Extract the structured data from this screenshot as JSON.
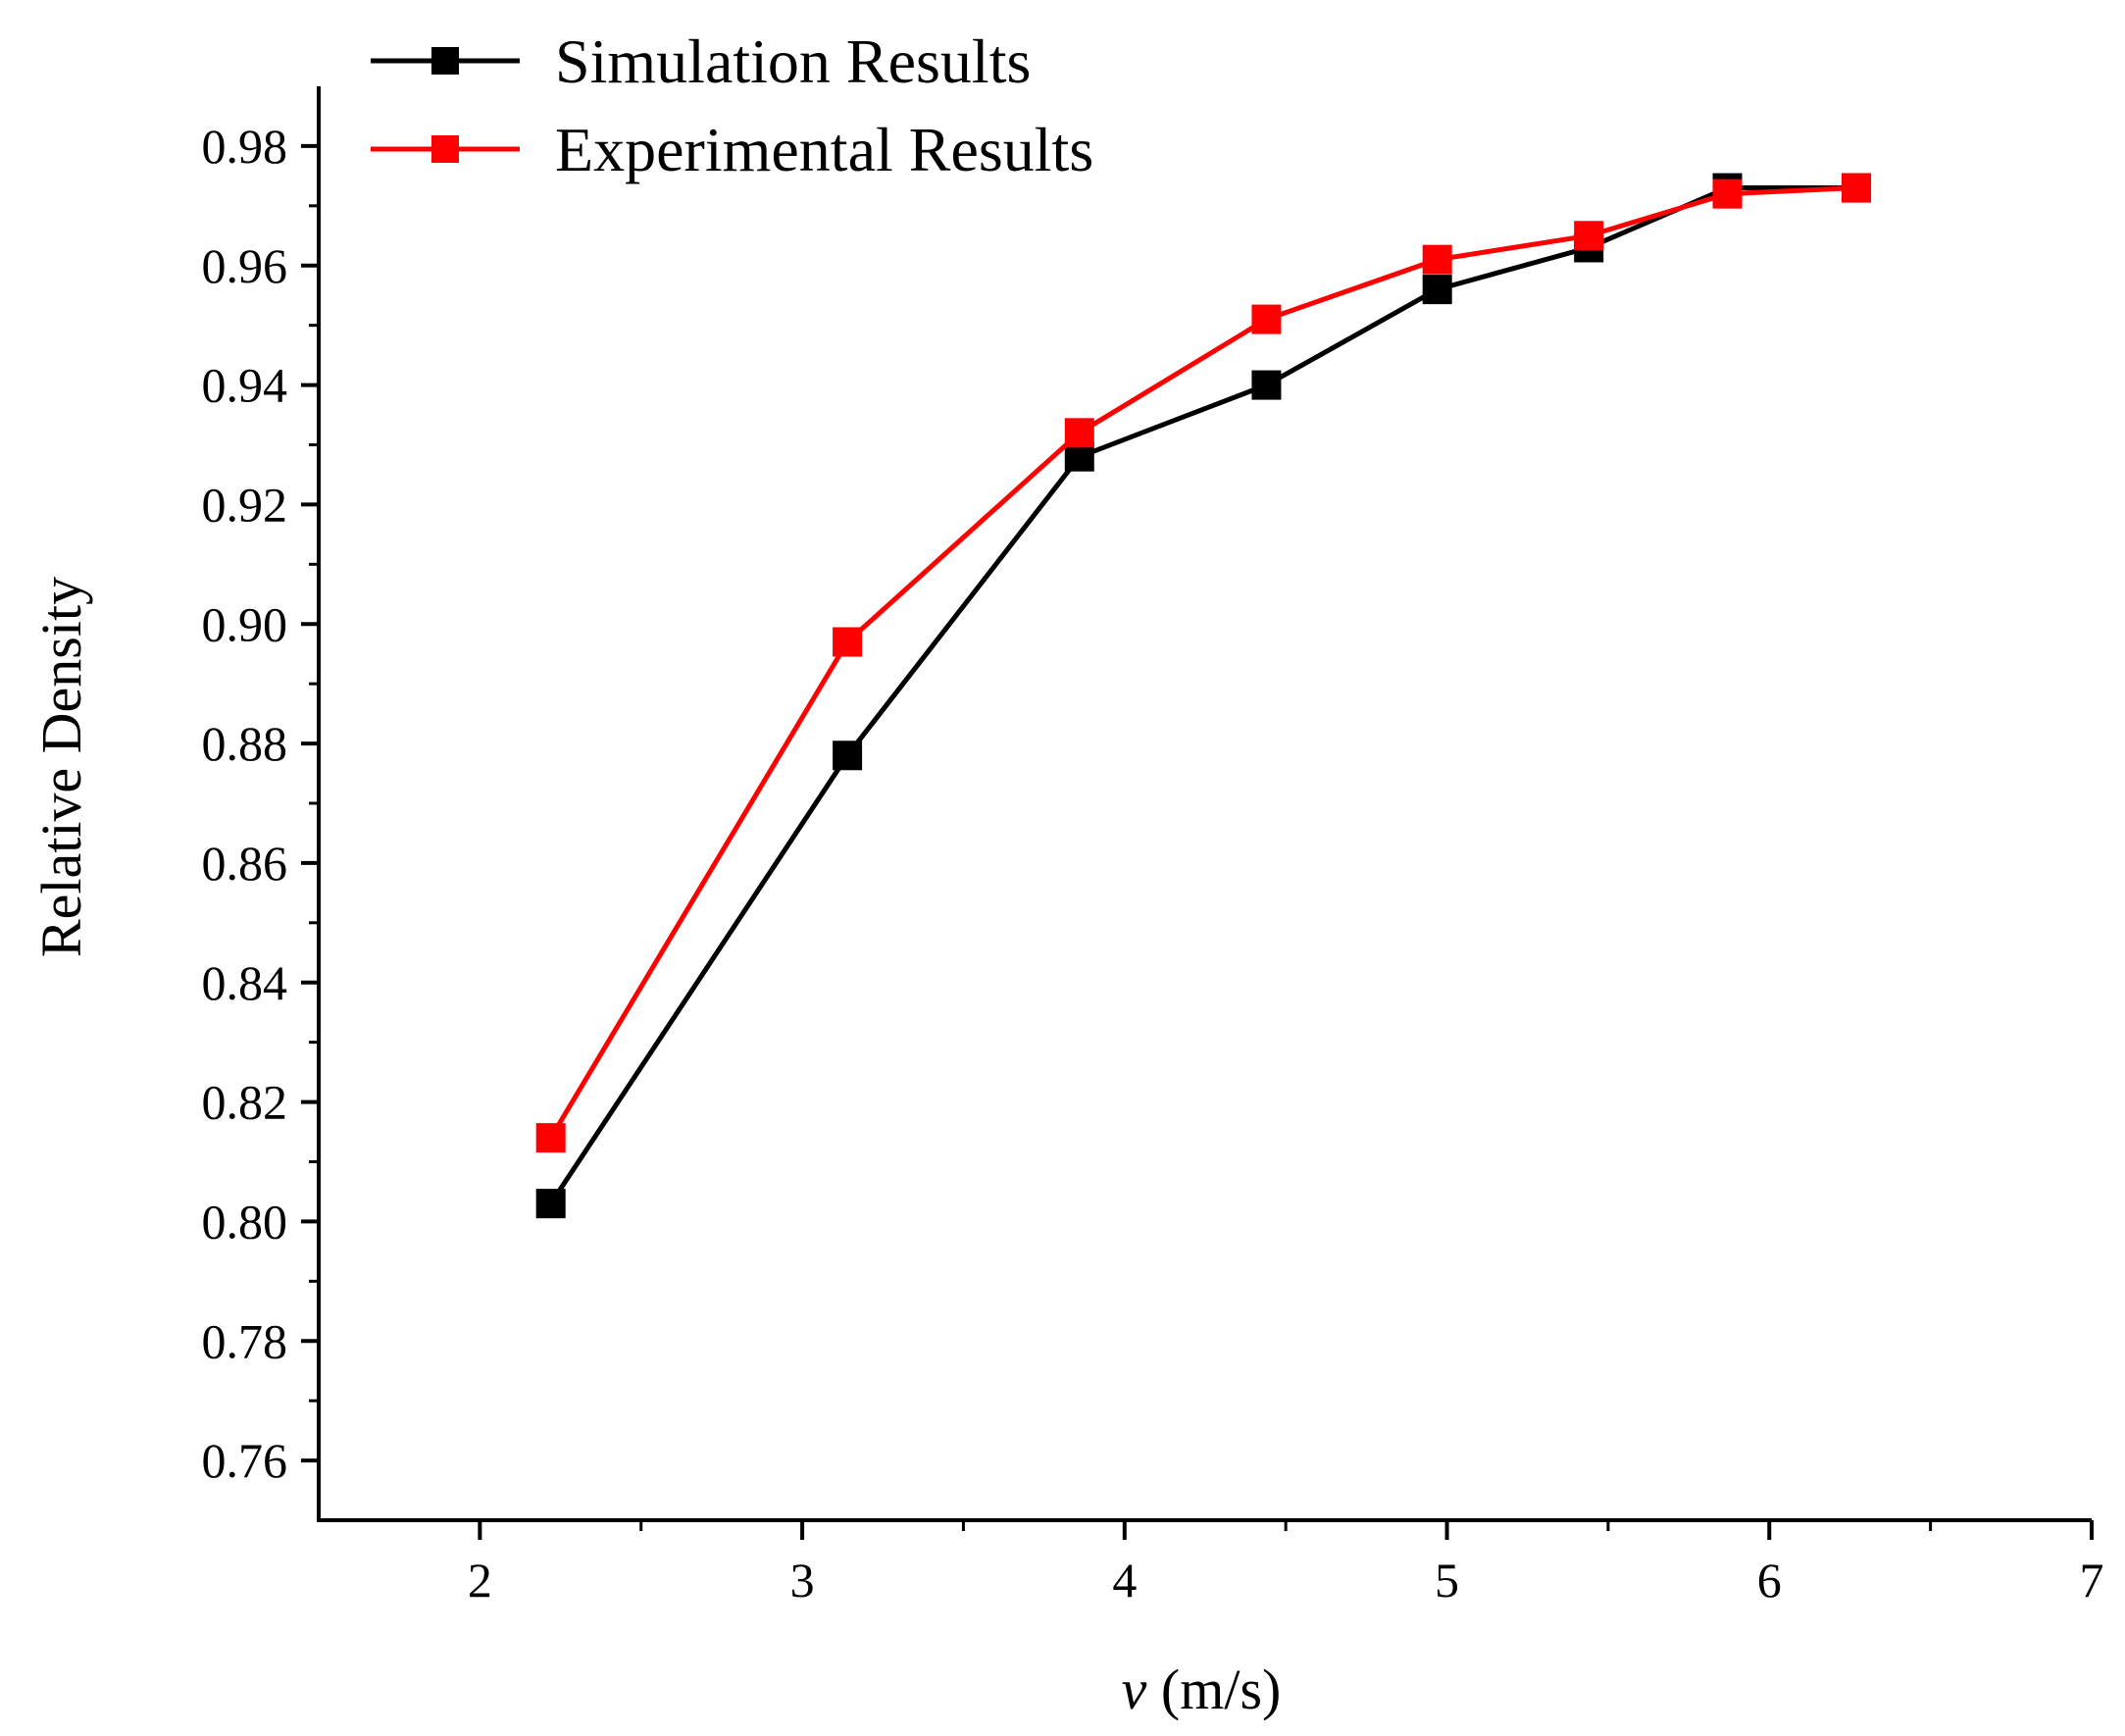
{
  "chart_data": {
    "type": "line",
    "xlabel_var": "v",
    "xlabel_unit": " (m/s)",
    "ylabel": "Relative Density",
    "xlim": [
      1.5,
      7
    ],
    "ylim": [
      0.75,
      0.99
    ],
    "x_ticks": [
      "2",
      "3",
      "4",
      "5",
      "6",
      "7"
    ],
    "y_ticks": [
      "0.76",
      "0.78",
      "0.80",
      "0.82",
      "0.84",
      "0.86",
      "0.88",
      "0.90",
      "0.92",
      "0.94",
      "0.96",
      "0.98"
    ],
    "grid": false,
    "legend_position": "top-left",
    "series": [
      {
        "name": "Simulation Results",
        "color": "#000000",
        "marker": "square",
        "x": [
          2.22,
          3.14,
          3.86,
          4.44,
          4.97,
          5.44,
          5.87,
          6.27
        ],
        "y": [
          0.803,
          0.878,
          0.928,
          0.94,
          0.956,
          0.963,
          0.973,
          0.973
        ]
      },
      {
        "name": "Experimental Results",
        "color": "#ff0000",
        "marker": "square",
        "x": [
          2.22,
          3.14,
          3.86,
          4.44,
          4.97,
          5.44,
          5.87,
          6.27
        ],
        "y": [
          0.814,
          0.897,
          0.932,
          0.951,
          0.961,
          0.965,
          0.972,
          0.973
        ]
      }
    ]
  }
}
